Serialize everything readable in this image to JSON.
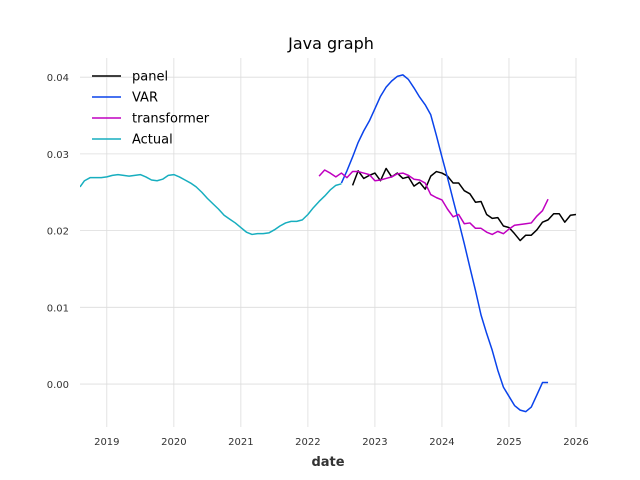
{
  "chart_data": {
    "type": "line",
    "title": "Java graph",
    "xlabel": "date",
    "ylabel": "",
    "xlim": [
      2018.6,
      2026.0
    ],
    "ylim": [
      -0.0056,
      0.0425
    ],
    "x_ticks": [
      2019,
      2020,
      2021,
      2022,
      2023,
      2024,
      2025,
      2026
    ],
    "x_tick_labels": [
      "2019",
      "2020",
      "2021",
      "2022",
      "2023",
      "2024",
      "2025",
      "2026"
    ],
    "y_ticks": [
      0.0,
      0.01,
      0.02,
      0.03,
      0.04
    ],
    "y_tick_labels": [
      "0.00",
      "0.01",
      "0.02",
      "0.03",
      "0.04"
    ],
    "grid": true,
    "legend": "top-left",
    "series": [
      {
        "name": "panel",
        "color": "#000000",
        "x": [
          2022.667,
          2022.75,
          2022.833,
          2022.917,
          2023.0,
          2023.083,
          2023.167,
          2023.25,
          2023.333,
          2023.417,
          2023.5,
          2023.583,
          2023.667,
          2023.75,
          2023.833,
          2023.917,
          2024.0,
          2024.083,
          2024.167,
          2024.25,
          2024.333,
          2024.417,
          2024.5,
          2024.583,
          2024.667,
          2024.75,
          2024.833,
          2024.917,
          2025.0,
          2025.083,
          2025.167,
          2025.25,
          2025.333,
          2025.417,
          2025.5,
          2025.583,
          2025.667,
          2025.75,
          2025.833,
          2025.917,
          2026.0
        ],
        "y": [
          0.0259,
          0.0278,
          0.0268,
          0.0272,
          0.0275,
          0.0265,
          0.0281,
          0.027,
          0.0275,
          0.0268,
          0.027,
          0.0258,
          0.0263,
          0.0254,
          0.0271,
          0.0277,
          0.0275,
          0.0271,
          0.0262,
          0.0262,
          0.0252,
          0.0248,
          0.0237,
          0.0238,
          0.0221,
          0.0216,
          0.0217,
          0.0206,
          0.0204,
          0.0196,
          0.0187,
          0.0194,
          0.0194,
          0.0201,
          0.0211,
          0.0214,
          0.0222,
          0.0222,
          0.0211,
          0.022,
          0.0221
        ]
      },
      {
        "name": "VAR",
        "color": "#0a43eb",
        "x": [
          2022.5,
          2022.583,
          2022.667,
          2022.75,
          2022.833,
          2022.917,
          2023.0,
          2023.083,
          2023.167,
          2023.25,
          2023.333,
          2023.417,
          2023.5,
          2023.583,
          2023.667,
          2023.75,
          2023.833,
          2023.917,
          2024.0,
          2024.083,
          2024.167,
          2024.25,
          2024.333,
          2024.417,
          2024.5,
          2024.583,
          2024.667,
          2024.75,
          2024.833,
          2024.917,
          2025.0,
          2025.083,
          2025.167,
          2025.25,
          2025.333,
          2025.417,
          2025.5,
          2025.583
        ],
        "y": [
          0.0262,
          0.0278,
          0.0296,
          0.0315,
          0.033,
          0.0343,
          0.0359,
          0.0375,
          0.0387,
          0.0395,
          0.0401,
          0.0403,
          0.0397,
          0.0386,
          0.0374,
          0.0364,
          0.0351,
          0.0324,
          0.0296,
          0.0269,
          0.024,
          0.0212,
          0.0183,
          0.0152,
          0.0122,
          0.009,
          0.0066,
          0.0044,
          0.0018,
          -0.0004,
          -0.0016,
          -0.0028,
          -0.0034,
          -0.0036,
          -0.003,
          -0.0014,
          0.0002,
          0.0002
        ]
      },
      {
        "name": "transformer",
        "color": "#c000c0",
        "x": [
          2022.167,
          2022.25,
          2022.333,
          2022.417,
          2022.5,
          2022.583,
          2022.667,
          2022.75,
          2022.833,
          2022.917,
          2023.0,
          2023.083,
          2023.167,
          2023.25,
          2023.333,
          2023.417,
          2023.5,
          2023.583,
          2023.667,
          2023.75,
          2023.833,
          2023.917,
          2024.0,
          2024.083,
          2024.167,
          2024.25,
          2024.333,
          2024.417,
          2024.5,
          2024.583,
          2024.667,
          2024.75,
          2024.833,
          2024.917,
          2025.0,
          2025.083,
          2025.167,
          2025.25,
          2025.333,
          2025.417,
          2025.5,
          2025.583
        ],
        "y": [
          0.0271,
          0.0279,
          0.0275,
          0.027,
          0.0275,
          0.0269,
          0.0277,
          0.0277,
          0.0275,
          0.0273,
          0.0265,
          0.0266,
          0.0268,
          0.027,
          0.0274,
          0.0275,
          0.0272,
          0.0267,
          0.0266,
          0.0262,
          0.0247,
          0.0243,
          0.024,
          0.0228,
          0.0218,
          0.0221,
          0.0209,
          0.021,
          0.0203,
          0.0203,
          0.0198,
          0.0195,
          0.0199,
          0.0196,
          0.0202,
          0.0207,
          0.0208,
          0.0209,
          0.021,
          0.0219,
          0.0226,
          0.0241
        ]
      },
      {
        "name": "Actual",
        "color": "#17aebf",
        "x": [
          2018.6,
          2018.667,
          2018.75,
          2018.833,
          2018.917,
          2019.0,
          2019.083,
          2019.167,
          2019.25,
          2019.333,
          2019.417,
          2019.5,
          2019.583,
          2019.667,
          2019.75,
          2019.833,
          2019.917,
          2020.0,
          2020.083,
          2020.167,
          2020.25,
          2020.333,
          2020.417,
          2020.5,
          2020.583,
          2020.667,
          2020.75,
          2020.833,
          2020.917,
          2021.0,
          2021.083,
          2021.167,
          2021.25,
          2021.333,
          2021.417,
          2021.5,
          2021.583,
          2021.667,
          2021.75,
          2021.833,
          2021.917,
          2022.0,
          2022.083,
          2022.167,
          2022.25,
          2022.333,
          2022.417,
          2022.5
        ],
        "y": [
          0.0257,
          0.0265,
          0.0269,
          0.0269,
          0.0269,
          0.027,
          0.0272,
          0.0273,
          0.0272,
          0.0271,
          0.0272,
          0.0273,
          0.027,
          0.0266,
          0.0265,
          0.0267,
          0.0272,
          0.0273,
          0.027,
          0.0266,
          0.0262,
          0.0257,
          0.025,
          0.0242,
          0.0235,
          0.0228,
          0.022,
          0.0215,
          0.021,
          0.0204,
          0.0198,
          0.0195,
          0.0196,
          0.0196,
          0.0197,
          0.0201,
          0.0206,
          0.021,
          0.0212,
          0.0212,
          0.0214,
          0.0221,
          0.023,
          0.0238,
          0.0245,
          0.0253,
          0.0259,
          0.0261
        ]
      }
    ]
  }
}
